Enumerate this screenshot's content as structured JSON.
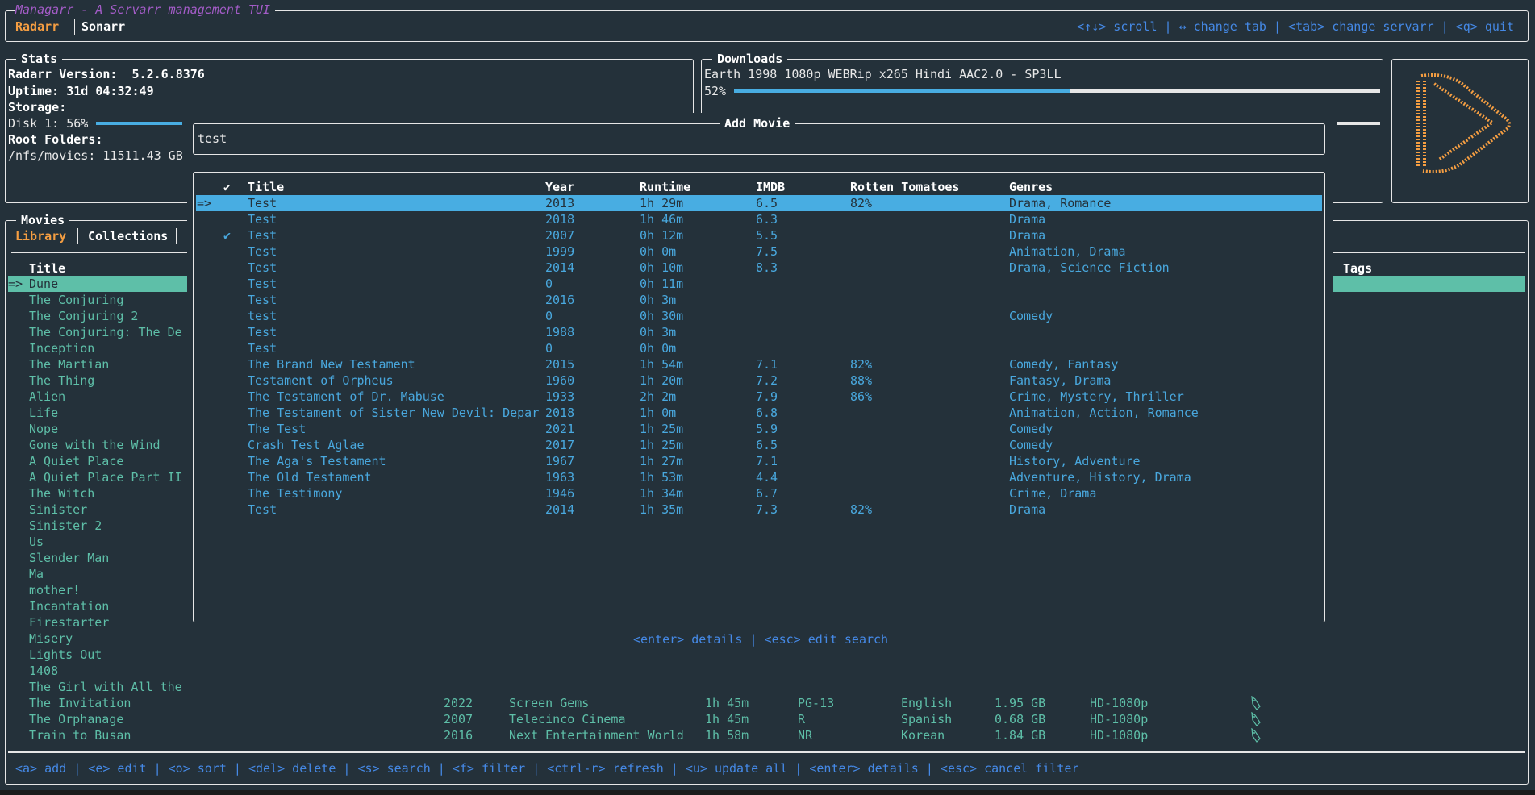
{
  "header": {
    "title": "Managarr - A Servarr management TUI",
    "tabs": [
      {
        "label": "Radarr",
        "active": true
      },
      {
        "label": "Sonarr",
        "active": false
      }
    ],
    "hints": "<↑↓> scroll | ↔ change tab | <tab> change servarr | <q> quit"
  },
  "stats": {
    "title": "Stats",
    "version": "Radarr Version:  5.2.6.8376",
    "uptime": "Uptime: 31d 04:32:49",
    "storage_label": "Storage:",
    "disk": "Disk 1: 56%",
    "disk_percent": 56,
    "root_folders_label": "Root Folders:",
    "root_folder": "/nfs/movies: 11511.43 GB"
  },
  "downloads": {
    "title": "Downloads",
    "name": "Earth 1998 1080p WEBRip x265 Hindi AAC2.0 - SP3LL",
    "percent_label": "52%",
    "percent": 52
  },
  "logo": {
    "icon": "radarr-logo",
    "color": "#f59e42"
  },
  "movies": {
    "title": "Movies",
    "tabs": [
      {
        "label": "Library",
        "active": true
      },
      {
        "label": "Collections",
        "active": false
      }
    ],
    "columns": {
      "title": "Title",
      "tags": "Tags"
    },
    "selected_marker": "=>",
    "rows": [
      {
        "title": "Dune"
      },
      {
        "title": "The Conjuring"
      },
      {
        "title": "The Conjuring 2"
      },
      {
        "title": "The Conjuring: The De"
      },
      {
        "title": "Inception"
      },
      {
        "title": "The Martian"
      },
      {
        "title": "The Thing"
      },
      {
        "title": "Alien"
      },
      {
        "title": "Life"
      },
      {
        "title": "Nope"
      },
      {
        "title": "Gone with the Wind"
      },
      {
        "title": "A Quiet Place"
      },
      {
        "title": "A Quiet Place Part II"
      },
      {
        "title": "The Witch"
      },
      {
        "title": "Sinister"
      },
      {
        "title": "Sinister 2"
      },
      {
        "title": "Us"
      },
      {
        "title": "Slender Man"
      },
      {
        "title": "Ma"
      },
      {
        "title": "mother!"
      },
      {
        "title": "Incantation"
      },
      {
        "title": "Firestarter"
      },
      {
        "title": "Misery"
      },
      {
        "title": "Lights Out"
      },
      {
        "title": "1408"
      },
      {
        "title": "The Girl with All the"
      },
      {
        "title": "The Invitation",
        "year": "2022",
        "studio": "Screen Gems",
        "runtime": "1h 45m",
        "rating": "PG-13",
        "language": "English",
        "size": "1.95 GB",
        "quality": "HD-1080p",
        "tag_icon": "tag-icon"
      },
      {
        "title": "The Orphanage",
        "year": "2007",
        "studio": "Telecinco Cinema",
        "runtime": "1h 45m",
        "rating": "R",
        "language": "Spanish",
        "size": "0.68 GB",
        "quality": "HD-1080p",
        "tag_icon": "tag-icon"
      },
      {
        "title": "Train to Busan",
        "year": "2016",
        "studio": "Next Entertainment World",
        "runtime": "1h 58m",
        "rating": "NR",
        "language": "Korean",
        "size": "1.84 GB",
        "quality": "HD-1080p",
        "tag_icon": "tag-icon"
      }
    ],
    "help": "<a> add | <e> edit | <o> sort | <del> delete | <s> search | <f> filter | <ctrl-r> refresh | <u> update all | <enter> details | <esc> cancel filter"
  },
  "add_movie": {
    "title": "Add Movie",
    "search_value": "test",
    "columns": {
      "check": "✔",
      "title": "Title",
      "year": "Year",
      "runtime": "Runtime",
      "imdb": "IMDB",
      "rt": "Rotten Tomatoes",
      "genres": "Genres"
    },
    "selected_marker": "=>",
    "rows": [
      {
        "in_library": false,
        "title": "Test",
        "year": "2013",
        "runtime": "1h 29m",
        "imdb": "6.5",
        "rt": "82%",
        "genres": "Drama, Romance"
      },
      {
        "in_library": false,
        "title": "Test",
        "year": "2018",
        "runtime": "1h 46m",
        "imdb": "6.3",
        "rt": "",
        "genres": "Drama"
      },
      {
        "in_library": true,
        "title": "Test",
        "year": "2007",
        "runtime": "0h 12m",
        "imdb": "5.5",
        "rt": "",
        "genres": "Drama"
      },
      {
        "in_library": false,
        "title": "Test",
        "year": "1999",
        "runtime": "0h 0m",
        "imdb": "7.5",
        "rt": "",
        "genres": "Animation, Drama"
      },
      {
        "in_library": false,
        "title": "Test",
        "year": "2014",
        "runtime": "0h 10m",
        "imdb": "8.3",
        "rt": "",
        "genres": "Drama, Science Fiction"
      },
      {
        "in_library": false,
        "title": "Test",
        "year": "0",
        "runtime": "0h 11m",
        "imdb": "",
        "rt": "",
        "genres": ""
      },
      {
        "in_library": false,
        "title": "Test",
        "year": "2016",
        "runtime": "0h 3m",
        "imdb": "",
        "rt": "",
        "genres": ""
      },
      {
        "in_library": false,
        "title": "test",
        "year": "0",
        "runtime": "0h 30m",
        "imdb": "",
        "rt": "",
        "genres": "Comedy"
      },
      {
        "in_library": false,
        "title": "Test",
        "year": "1988",
        "runtime": "0h 3m",
        "imdb": "",
        "rt": "",
        "genres": ""
      },
      {
        "in_library": false,
        "title": "Test",
        "year": "0",
        "runtime": "0h 0m",
        "imdb": "",
        "rt": "",
        "genres": ""
      },
      {
        "in_library": false,
        "title": "The Brand New Testament",
        "year": "2015",
        "runtime": "1h 54m",
        "imdb": "7.1",
        "rt": "82%",
        "genres": "Comedy, Fantasy"
      },
      {
        "in_library": false,
        "title": "Testament of Orpheus",
        "year": "1960",
        "runtime": "1h 20m",
        "imdb": "7.2",
        "rt": "88%",
        "genres": "Fantasy, Drama"
      },
      {
        "in_library": false,
        "title": "The Testament of Dr. Mabuse",
        "year": "1933",
        "runtime": "2h 2m",
        "imdb": "7.9",
        "rt": "86%",
        "genres": "Crime, Mystery, Thriller"
      },
      {
        "in_library": false,
        "title": "The Testament of Sister New Devil: Depar",
        "year": "2018",
        "runtime": "1h 0m",
        "imdb": "6.8",
        "rt": "",
        "genres": "Animation, Action, Romance"
      },
      {
        "in_library": false,
        "title": "The Test",
        "year": "2021",
        "runtime": "1h 25m",
        "imdb": "5.9",
        "rt": "",
        "genres": "Comedy"
      },
      {
        "in_library": false,
        "title": "Crash Test Aglae",
        "year": "2017",
        "runtime": "1h 25m",
        "imdb": "6.5",
        "rt": "",
        "genres": "Comedy"
      },
      {
        "in_library": false,
        "title": "The Aga's Testament",
        "year": "1967",
        "runtime": "1h 27m",
        "imdb": "7.1",
        "rt": "",
        "genres": "History, Adventure"
      },
      {
        "in_library": false,
        "title": "The Old Testament",
        "year": "1963",
        "runtime": "1h 53m",
        "imdb": "4.4",
        "rt": "",
        "genres": "Adventure, History, Drama"
      },
      {
        "in_library": false,
        "title": "The Testimony",
        "year": "1946",
        "runtime": "1h 34m",
        "imdb": "6.7",
        "rt": "",
        "genres": "Crime, Drama"
      },
      {
        "in_library": false,
        "title": "Test",
        "year": "2014",
        "runtime": "1h 35m",
        "imdb": "7.3",
        "rt": "82%",
        "genres": "Drama"
      }
    ],
    "help": "<enter> details | <esc> edit search"
  },
  "colors": {
    "background": "#24313a",
    "accent": "#f59e42",
    "title": "#a35cc7",
    "library_text": "#5ebfa8",
    "search_text": "#49a8de",
    "highlight": "#48ade2",
    "hint": "#4589e6"
  }
}
